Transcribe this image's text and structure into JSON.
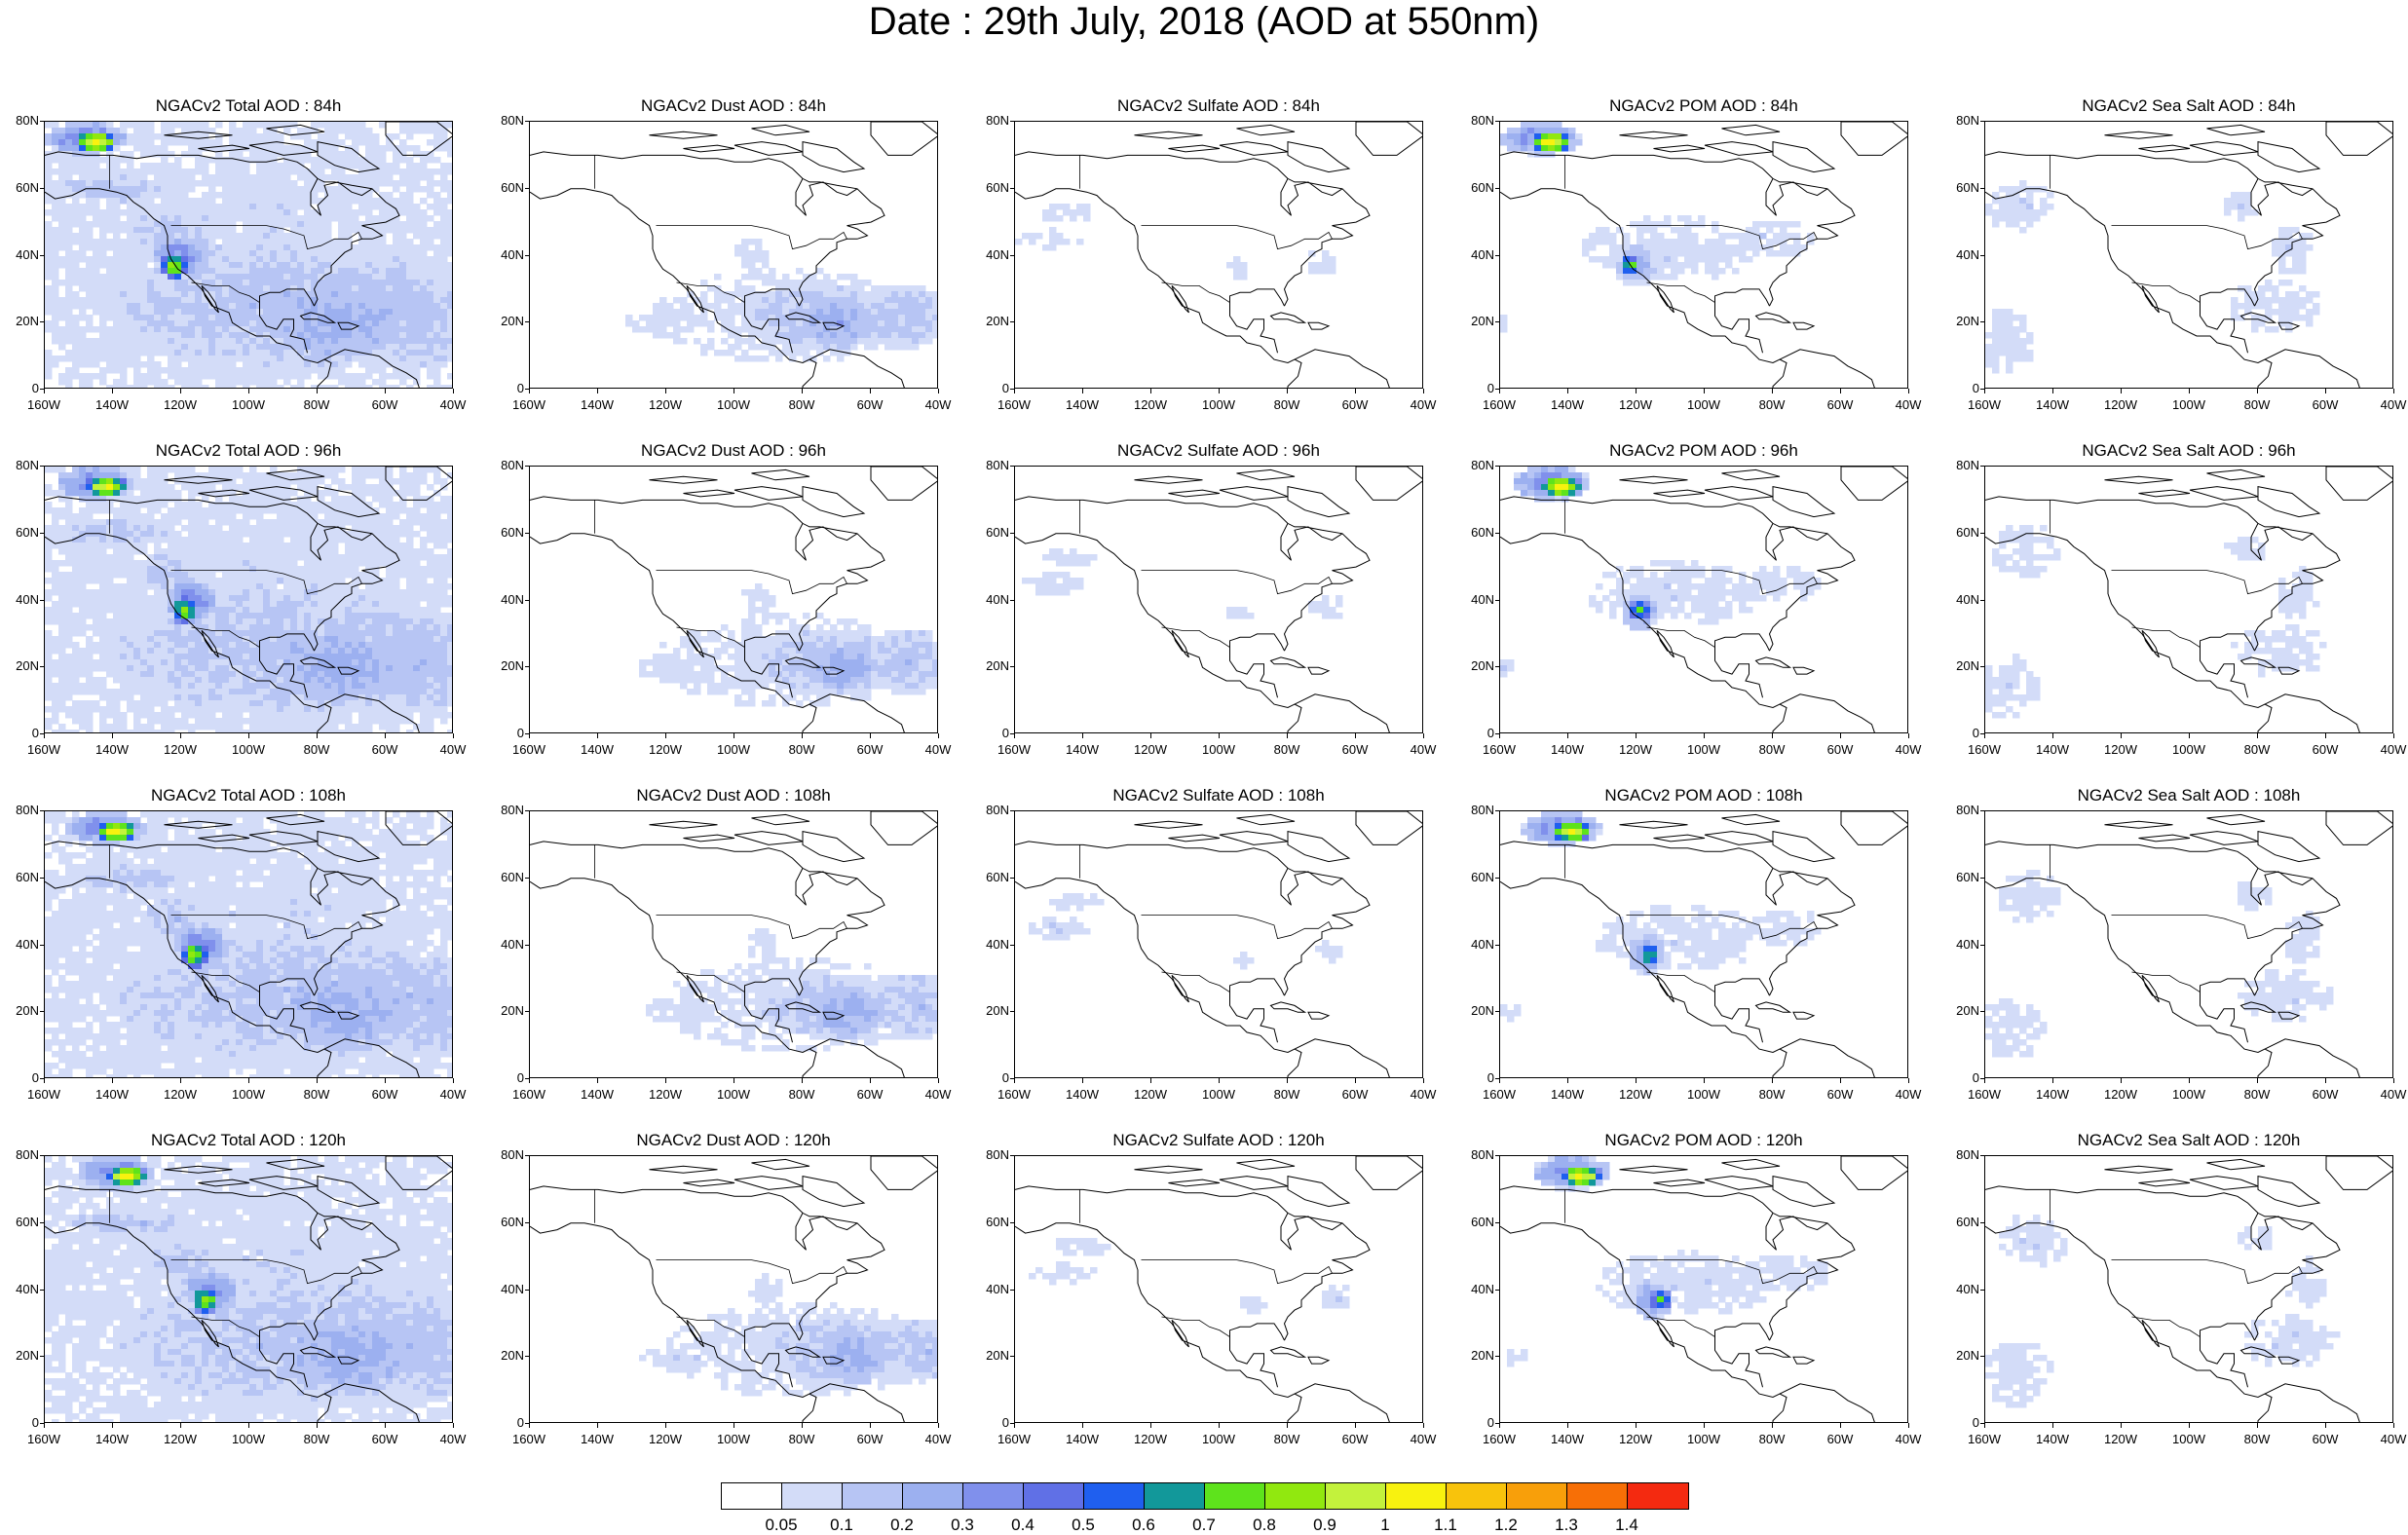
{
  "title": "Date : 29th July, 2018 (AOD at 550nm)",
  "lat_labels": [
    "80N",
    "60N",
    "40N",
    "20N",
    "0"
  ],
  "lon_labels": [
    "160W",
    "140W",
    "120W",
    "100W",
    "80W",
    "60W",
    "40W"
  ],
  "rows": [
    {
      "lead": "84h",
      "titles": [
        "NGACv2 Total AOD : 84h",
        "NGACv2 Dust AOD : 84h",
        "NGACv2 Sulfate AOD : 84h",
        "NGACv2 POM AOD : 84h",
        "NGACv2 Sea Salt AOD : 84h"
      ]
    },
    {
      "lead": "96h",
      "titles": [
        "NGACv2 Total AOD : 96h",
        "NGACv2 Dust AOD : 96h",
        "NGACv2 Sulfate AOD : 96h",
        "NGACv2 POM AOD : 96h",
        "NGACv2 Sea Salt AOD : 96h"
      ]
    },
    {
      "lead": "108h",
      "titles": [
        "NGACv2 Total AOD : 108h",
        "NGACv2 Dust AOD : 108h",
        "NGACv2 Sulfate AOD : 108h",
        "NGACv2 POM AOD : 108h",
        "NGACv2 Sea Salt AOD : 108h"
      ]
    },
    {
      "lead": "120h",
      "titles": [
        "NGACv2 Total AOD : 120h",
        "NGACv2 Dust AOD : 120h",
        "NGACv2 Sulfate AOD : 120h",
        "NGACv2 POM AOD : 120h",
        "NGACv2 Sea Salt  AOD : 120h"
      ]
    }
  ],
  "colorbar": {
    "colors": [
      "#ffffff",
      "#d3dcf8",
      "#b7c5f4",
      "#9cb0f0",
      "#8090ec",
      "#6070e6",
      "#1f5fef",
      "#12989a",
      "#5ee31c",
      "#91e80f",
      "#c3f23c",
      "#f8f20f",
      "#f8c30c",
      "#f89f0a",
      "#f76f06",
      "#f42a10"
    ],
    "labels": [
      "0.05",
      "0.1",
      "0.2",
      "0.3",
      "0.4",
      "0.5",
      "0.6",
      "0.7",
      "0.8",
      "0.9",
      "1",
      "1.1",
      "1.2",
      "1.3",
      "1.4"
    ]
  }
}
